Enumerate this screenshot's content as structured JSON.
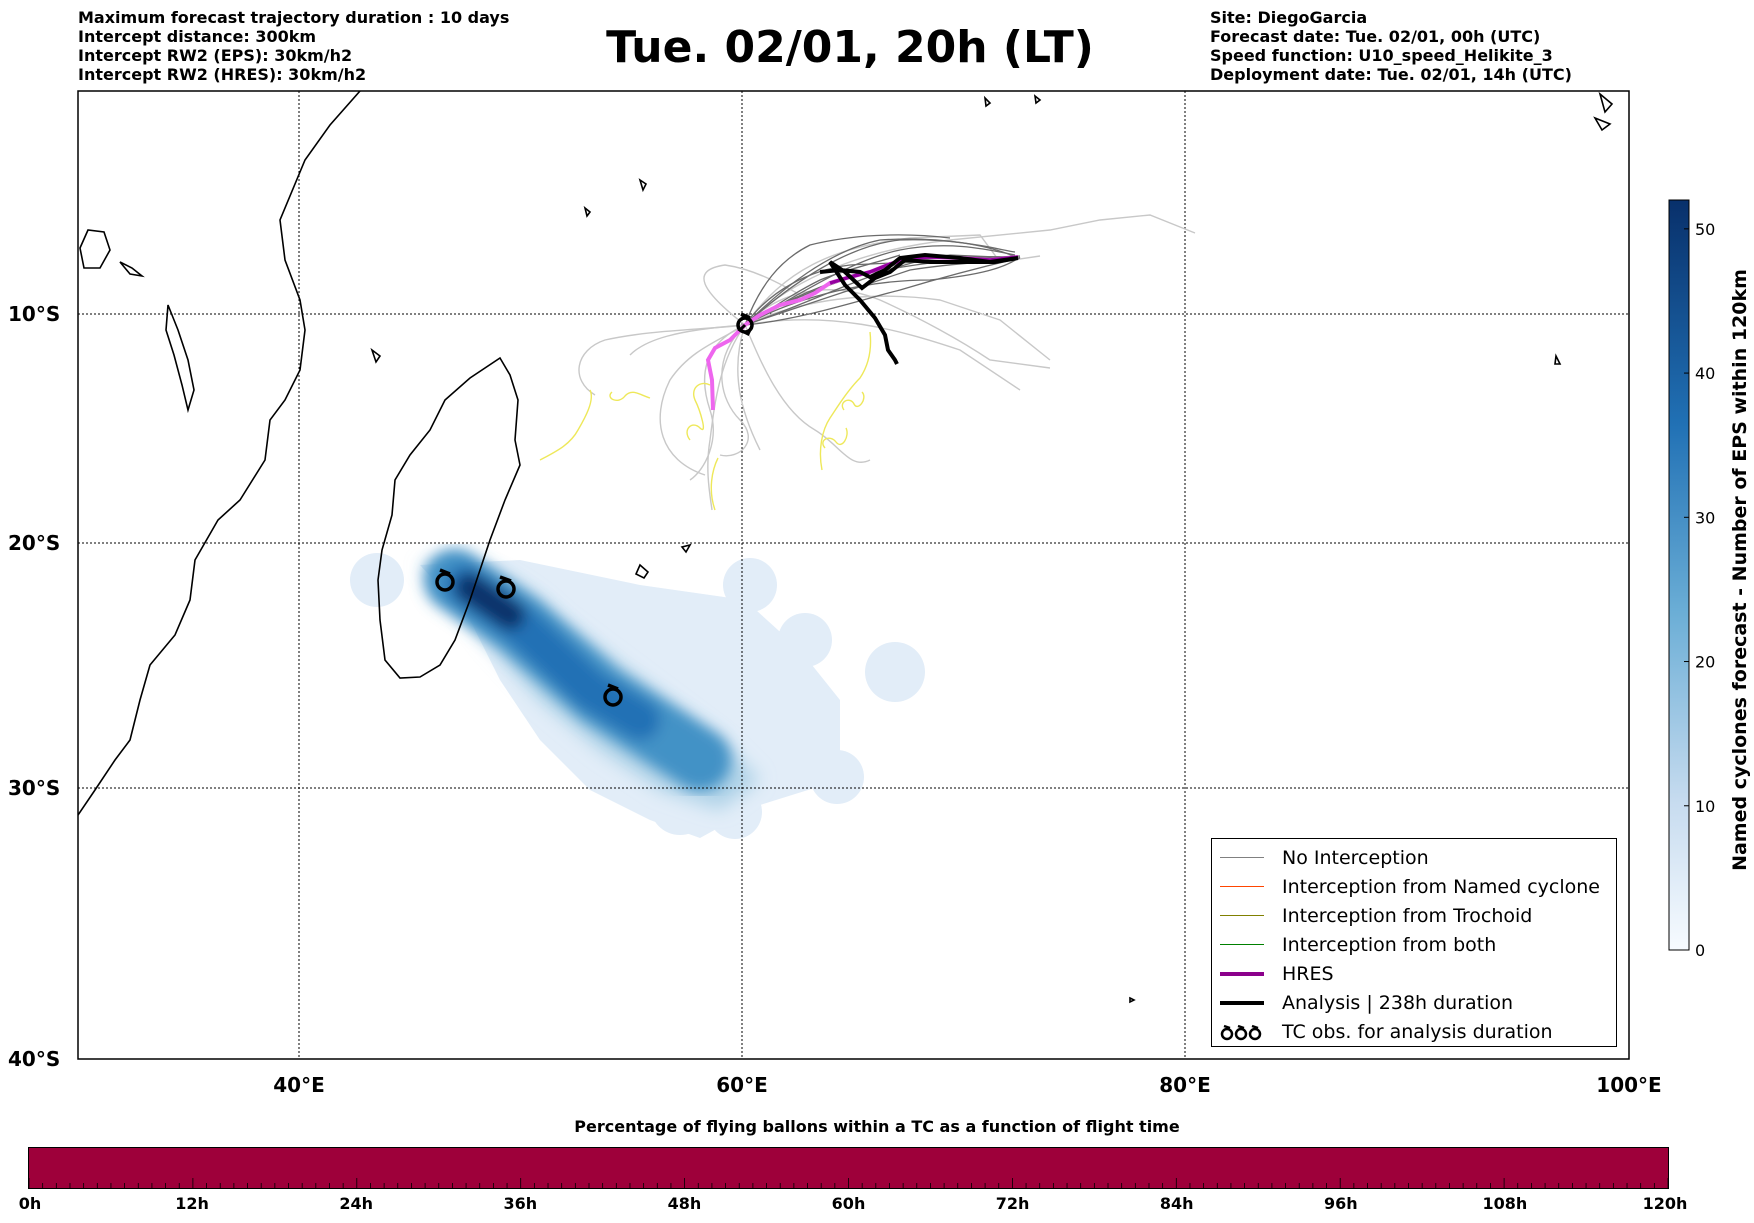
{
  "header": {
    "left_lines": [
      "Maximum forecast trajectory duration : 10 days",
      "Intercept distance: 300km",
      "Intercept RW2 (EPS):  30km/h2",
      "Intercept RW2 (HRES): 30km/h2"
    ],
    "title": "Tue. 02/01, 20h (LT)",
    "right_lines": [
      "Site: DiegoGarcia",
      "Forecast date: Tue. 02/01, 00h (UTC)",
      "Speed function: U10_speed_Helikite_3",
      "Deployment date: Tue. 02/01, 14h (UTC)"
    ]
  },
  "map": {
    "lat_labels": [
      "10°S",
      "20°S",
      "30°S",
      "40°S"
    ],
    "lon_labels": [
      "40°E",
      "60°E",
      "80°E",
      "100°E"
    ],
    "extent": {
      "lon_min": 30,
      "lon_max": 100,
      "lat_top": 0,
      "lat_bottom": -40
    }
  },
  "legend": {
    "no_interception": "No Interception",
    "named_cyclone": "Interception from Named cyclone",
    "trochoid": "Interception from Trochoid",
    "both": "Interception from both",
    "hres": "HRES",
    "analysis": "Analysis | 238h duration",
    "tc_obs": "TC obs. for analysis duration"
  },
  "colorbar": {
    "title": "Named cyclones forecast - Number of EPS within 120km",
    "ticks": [
      "0",
      "10",
      "20",
      "30",
      "40",
      "50"
    ],
    "min": 0,
    "max": 52,
    "color_low": "#e6effa",
    "color_high": "#08306b"
  },
  "bottom": {
    "title": "Percentage of flying ballons within a TC as a function of flight time",
    "bar_color": "#9e003a",
    "ticks": [
      "0h",
      "12h",
      "24h",
      "36h",
      "48h",
      "60h",
      "72h",
      "84h",
      "96h",
      "108h",
      "120h"
    ]
  },
  "colors": {
    "no_interception": "#808080",
    "named_cyclone": "#ff4500",
    "trochoid": "#808000",
    "both": "#008000",
    "hres": "#8b008b",
    "hres_track": "#ee66ee",
    "analysis": "#000000",
    "trochoid_track": "#eee85a"
  }
}
